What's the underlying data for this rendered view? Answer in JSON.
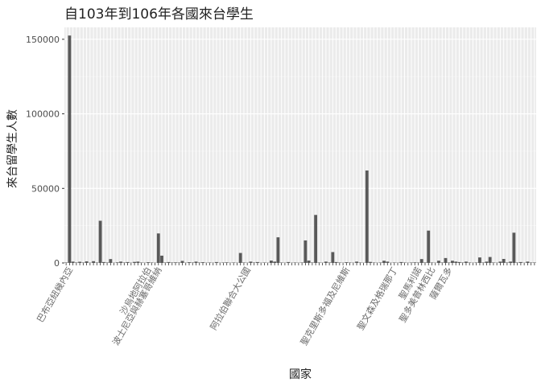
{
  "chart_data": {
    "type": "bar",
    "title": "自103年到106年各國來台學生",
    "xlabel": "國家",
    "ylabel": "來台留學生人數",
    "ylim": [
      0,
      158000
    ],
    "yticks": [
      0,
      50000,
      100000,
      150000
    ],
    "ytick_labels": [
      "0",
      "50000",
      "100000",
      "150000"
    ],
    "grid": true,
    "bar_color": "#595959",
    "panel_color": "#ebebeb",
    "values": [
      300,
      152500,
      900,
      300,
      800,
      300,
      1100,
      200,
      1200,
      300,
      28300,
      600,
      300,
      2600,
      200,
      400,
      900,
      300,
      600,
      200,
      700,
      900,
      300,
      200,
      500,
      300,
      200,
      19800,
      4900,
      300,
      600,
      300,
      400,
      300,
      1400,
      200,
      500,
      300,
      900,
      300,
      500,
      200,
      300,
      200,
      600,
      200,
      300,
      400,
      200,
      300,
      200,
      6700,
      300,
      200,
      900,
      300,
      600,
      200,
      300,
      200,
      1600,
      900,
      17200,
      300,
      200,
      600,
      200,
      300,
      200,
      300,
      15100,
      1600,
      300,
      32200,
      300,
      200,
      900,
      300,
      7300,
      600,
      300,
      200,
      500,
      300,
      200,
      900,
      300,
      200,
      62000,
      700,
      300,
      200,
      300,
      1500,
      900,
      200,
      300,
      200,
      600,
      300,
      200,
      300,
      400,
      300,
      2600,
      300,
      21700,
      300,
      200,
      1500,
      300,
      3300,
      300,
      1500,
      900,
      600,
      300,
      900,
      300,
      200,
      300,
      3700,
      300,
      900,
      4000,
      300,
      200,
      900,
      2700,
      300,
      900,
      20300,
      300,
      600,
      200,
      900,
      300,
      300
    ],
    "categories_visible": [
      "巴布亞紐幾內亞",
      "沙烏地阿拉伯",
      "波士尼亞與赫塞哥維納",
      "阿拉伯聯合大公國",
      "聖克里斯多福及尼維斯",
      "聖文森及格瑞那丁",
      "聖馬利諾",
      "聖多美普林西比",
      "薩爾瓦多"
    ]
  }
}
